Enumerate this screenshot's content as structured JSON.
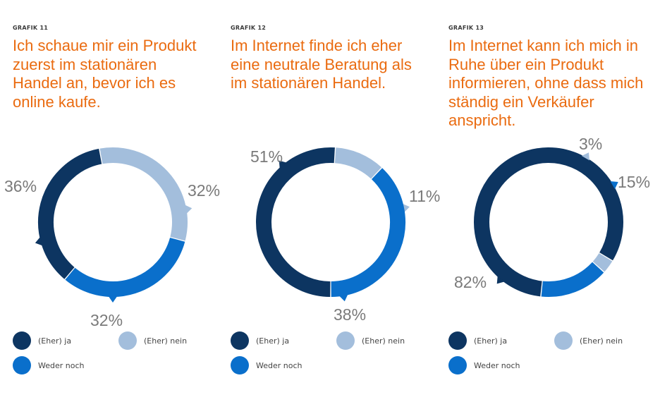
{
  "colors": {
    "ja": "#0d3561",
    "nein": "#a3bedc",
    "weder": "#0a6fcb"
  },
  "legend": {
    "ja": "(Eher) ja",
    "nein": "(Eher) nein",
    "weder": "Weder noch"
  },
  "chart_data": [
    {
      "type": "donut",
      "label": "GRAFIK 11",
      "title": "Ich schaue mir ein Produkt\nzuerst im stationären\nHandel an, bevor ich es\nonline kaufe.",
      "segments": [
        {
          "key": "ja",
          "name": "(Eher) ja",
          "value": 36,
          "display": "36%"
        },
        {
          "key": "nein",
          "name": "(Eher) nein",
          "value": 32,
          "display": "32%"
        },
        {
          "key": "weder",
          "name": "Weder noch",
          "value": 32,
          "display": "32%"
        }
      ]
    },
    {
      "type": "donut",
      "label": "GRAFIK 12",
      "title": "Im Internet finde ich eher\neine neutrale Beratung als\nim stationären Handel.",
      "segments": [
        {
          "key": "ja",
          "name": "(Eher) ja",
          "value": 51,
          "display": "51%"
        },
        {
          "key": "nein",
          "name": "(Eher) nein",
          "value": 11,
          "display": "11%"
        },
        {
          "key": "weder",
          "name": "Weder noch",
          "value": 38,
          "display": "38%"
        }
      ]
    },
    {
      "type": "donut",
      "label": "GRAFIK 13",
      "title": "Im Internet kann ich mich in\nRuhe über ein Produkt\ninformieren, ohne dass mich\nständig ein Verkäufer\nanspricht.",
      "segments": [
        {
          "key": "ja",
          "name": "(Eher) ja",
          "value": 82,
          "display": "82%"
        },
        {
          "key": "nein",
          "name": "(Eher) nein",
          "value": 3,
          "display": "3%"
        },
        {
          "key": "weder",
          "name": "Weder noch",
          "value": 15,
          "display": "15%"
        }
      ]
    }
  ]
}
